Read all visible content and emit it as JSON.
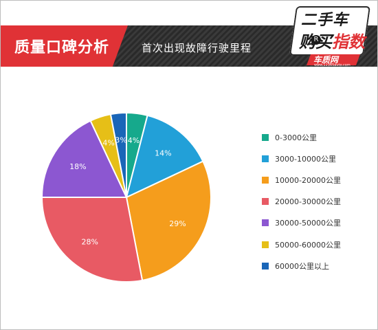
{
  "header": {
    "tag_title": "质量口碑分析",
    "sub_title": "首次出现故障行驶里程",
    "logo": {
      "line1": "二手车",
      "line2a": "购买",
      "line2b": "指数",
      "reg": "R",
      "site": "车质网",
      "url": "www.12365auto.com"
    },
    "colors": {
      "accent": "#e03236",
      "band": "#2f2f2f"
    }
  },
  "chart_data": {
    "type": "pie",
    "title": "",
    "categories": [
      "0-3000公里",
      "3000-10000公里",
      "10000-20000公里",
      "20000-30000公里",
      "30000-50000公里",
      "50000-60000公里",
      "60000公里以上"
    ],
    "values": [
      4,
      14,
      29,
      28,
      18,
      4,
      3
    ],
    "labels": [
      "4%",
      "14%",
      "29%",
      "28%",
      "18%",
      "4%",
      "3%"
    ],
    "colors": [
      "#16a98c",
      "#22a0d8",
      "#f59d1c",
      "#e85a64",
      "#8c57d1",
      "#e6bf17",
      "#1a66b8"
    ],
    "start": "12 o'clock",
    "direction": "clockwise",
    "legend_position": "right"
  }
}
